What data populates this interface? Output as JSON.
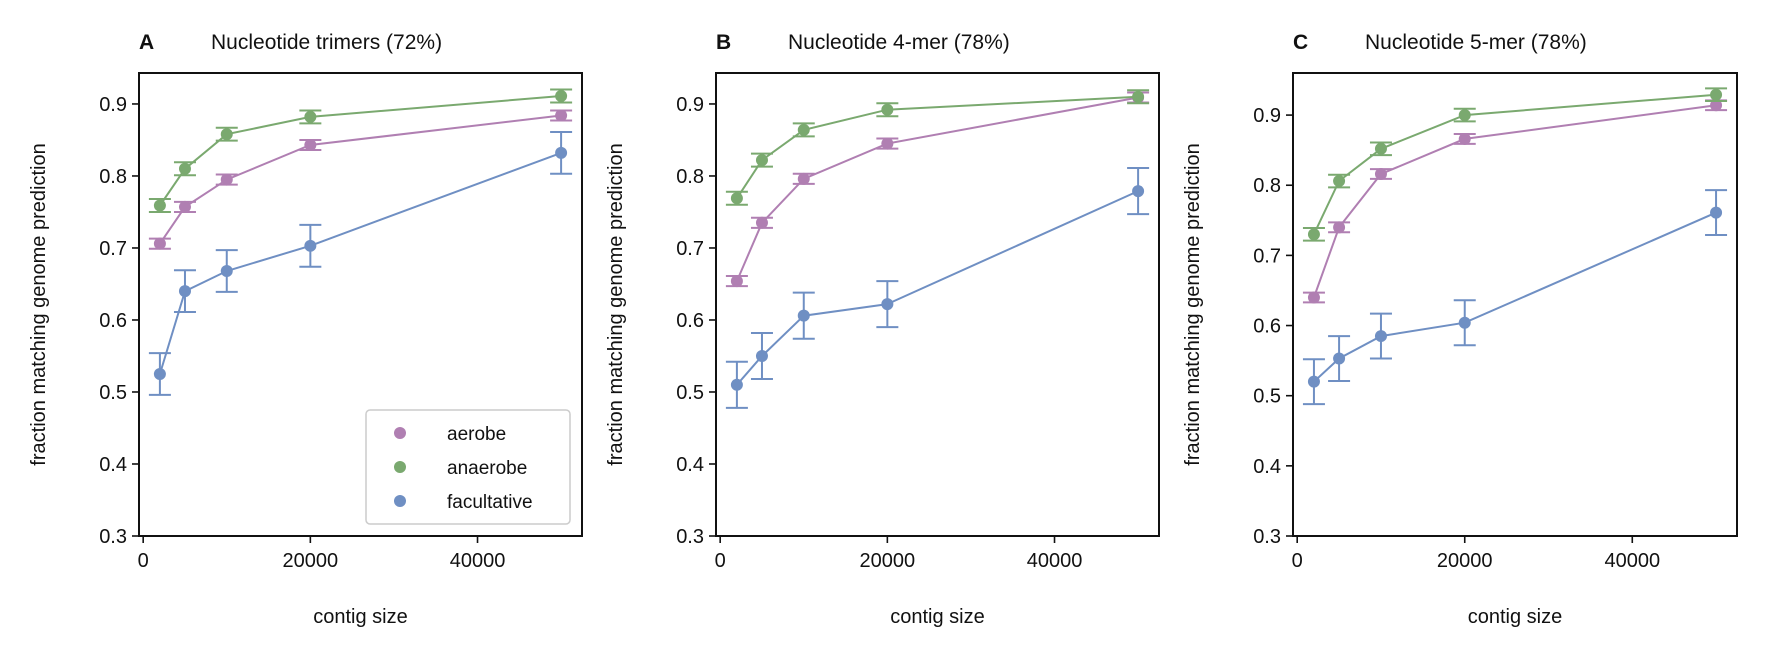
{
  "figure": {
    "legend": {
      "placement": "lower-right",
      "panel": 0,
      "entries": [
        {
          "label": "aerobe",
          "color": "#b07fb2"
        },
        {
          "label": "anaerobe",
          "color": "#7aa96f"
        },
        {
          "label": "facultative",
          "color": "#6f8fc3"
        }
      ]
    }
  },
  "chart_data": [
    {
      "type": "line",
      "letter": "A",
      "title": "Nucleotide trimers (72%)",
      "xlabel": "contig size",
      "ylabel": "fraction matching genome prediction",
      "xlim": [
        -500,
        52500
      ],
      "ylim": [
        0.3,
        0.943
      ],
      "xticks": [
        0,
        20000,
        40000
      ],
      "xtick_labels": [
        "0",
        "20000",
        "40000"
      ],
      "yticks": [
        0.3,
        0.4,
        0.5,
        0.6,
        0.7,
        0.8,
        0.9
      ],
      "ytick_labels": [
        "0.3",
        "0.4",
        "0.5",
        "0.6",
        "0.7",
        "0.8",
        "0.9"
      ],
      "grid": false,
      "x": [
        2000,
        5000,
        10000,
        20000,
        50000
      ],
      "series": [
        {
          "name": "aerobe",
          "color": "#b07fb2",
          "values": [
            0.706,
            0.757,
            0.795,
            0.843,
            0.884
          ],
          "err": [
            0.007,
            0.007,
            0.007,
            0.007,
            0.007
          ]
        },
        {
          "name": "anaerobe",
          "color": "#7aa96f",
          "values": [
            0.759,
            0.81,
            0.858,
            0.882,
            0.911
          ],
          "err": [
            0.009,
            0.009,
            0.009,
            0.009,
            0.009
          ]
        },
        {
          "name": "facultative",
          "color": "#6f8fc3",
          "values": [
            0.525,
            0.64,
            0.668,
            0.703,
            0.832
          ],
          "err": [
            0.029,
            0.029,
            0.029,
            0.029,
            0.029
          ]
        }
      ]
    },
    {
      "type": "line",
      "letter": "B",
      "title": "Nucleotide 4-mer (78%)",
      "xlabel": "contig size",
      "ylabel": "fraction matching genome prediction",
      "xlim": [
        -500,
        52500
      ],
      "ylim": [
        0.3,
        0.943
      ],
      "xticks": [
        0,
        20000,
        40000
      ],
      "xtick_labels": [
        "0",
        "20000",
        "40000"
      ],
      "yticks": [
        0.3,
        0.4,
        0.5,
        0.6,
        0.7,
        0.8,
        0.9
      ],
      "ytick_labels": [
        "0.3",
        "0.4",
        "0.5",
        "0.6",
        "0.7",
        "0.8",
        "0.9"
      ],
      "grid": false,
      "x": [
        2000,
        5000,
        10000,
        20000,
        50000
      ],
      "series": [
        {
          "name": "aerobe",
          "color": "#b07fb2",
          "values": [
            0.654,
            0.735,
            0.796,
            0.845,
            0.909
          ],
          "err": [
            0.007,
            0.007,
            0.007,
            0.007,
            0.007
          ]
        },
        {
          "name": "anaerobe",
          "color": "#7aa96f",
          "values": [
            0.769,
            0.822,
            0.864,
            0.892,
            0.91
          ],
          "err": [
            0.009,
            0.009,
            0.009,
            0.009,
            0.009
          ]
        },
        {
          "name": "facultative",
          "color": "#6f8fc3",
          "values": [
            0.51,
            0.55,
            0.606,
            0.622,
            0.779
          ],
          "err": [
            0.032,
            0.032,
            0.032,
            0.032,
            0.032
          ]
        }
      ]
    },
    {
      "type": "line",
      "letter": "C",
      "title": "Nucleotide 5-mer (78%)",
      "xlabel": "contig size",
      "ylabel": "fraction matching genome prediction",
      "xlim": [
        -500,
        52500
      ],
      "ylim": [
        0.3,
        0.96
      ],
      "xticks": [
        0,
        20000,
        40000
      ],
      "xtick_labels": [
        "0",
        "20000",
        "40000"
      ],
      "yticks": [
        0.3,
        0.4,
        0.5,
        0.6,
        0.7,
        0.8,
        0.9
      ],
      "ytick_labels": [
        "0.3",
        "0.4",
        "0.5",
        "0.6",
        "0.7",
        "0.8",
        "0.9"
      ],
      "grid": false,
      "x": [
        2000,
        5000,
        10000,
        20000,
        50000
      ],
      "series": [
        {
          "name": "aerobe",
          "color": "#b07fb2",
          "values": [
            0.64,
            0.74,
            0.816,
            0.866,
            0.914
          ],
          "err": [
            0.007,
            0.007,
            0.007,
            0.007,
            0.007
          ]
        },
        {
          "name": "anaerobe",
          "color": "#7aa96f",
          "values": [
            0.73,
            0.806,
            0.852,
            0.9,
            0.929
          ],
          "err": [
            0.009,
            0.009,
            0.009,
            0.009,
            0.009
          ]
        },
        {
          "name": "facultative",
          "color": "#6f8fc3",
          "values": [
            0.52,
            0.553,
            0.585,
            0.604,
            0.761
          ],
          "err": [
            0.032,
            0.032,
            0.032,
            0.032,
            0.032
          ]
        }
      ]
    }
  ]
}
